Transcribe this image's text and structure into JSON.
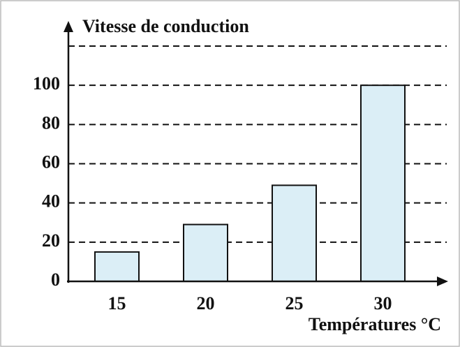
{
  "chart_data": {
    "type": "bar",
    "title": "Vitesse de conduction",
    "x_label": "Températures °C",
    "categories": [
      "15",
      "20",
      "25",
      "30"
    ],
    "values": [
      15,
      29,
      49,
      100
    ],
    "color": "#dbeef6",
    "ylim": [
      0,
      120
    ],
    "yticks": [
      0,
      20,
      40,
      60,
      80,
      100
    ],
    "grid": true
  }
}
